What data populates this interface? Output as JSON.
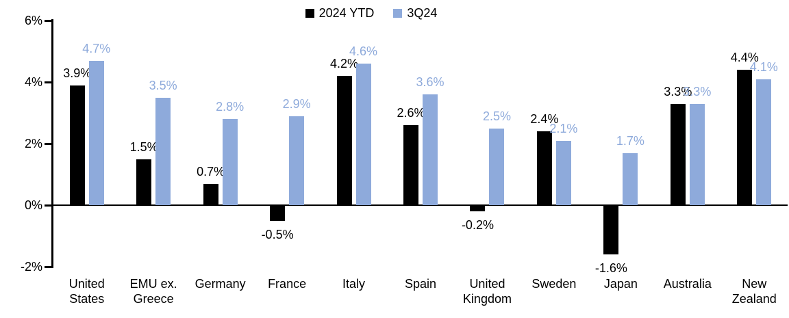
{
  "chart_data": {
    "type": "bar",
    "categories": [
      "United\nStates",
      "EMU ex.\nGreece",
      "Germany",
      "France",
      "Italy",
      "Spain",
      "United\nKingdom",
      "Sweden",
      "Japan",
      "Australia",
      "New\nZealand"
    ],
    "series": [
      {
        "name": "2024 YTD",
        "color": "#000000",
        "values": [
          3.9,
          1.5,
          0.7,
          -0.5,
          4.2,
          2.6,
          -0.2,
          2.4,
          -1.6,
          3.3,
          4.4
        ]
      },
      {
        "name": "3Q24",
        "color": "#8EAADB",
        "values": [
          4.7,
          3.5,
          2.8,
          2.9,
          4.6,
          3.6,
          2.5,
          2.1,
          1.7,
          3.3,
          4.1
        ]
      }
    ],
    "data_labels": [
      [
        "3.9%",
        "1.5%",
        "0.7%",
        "-0.5%",
        "4.2%",
        "2.6%",
        "-0.2%",
        "2.4%",
        "-1.6%",
        "3.3%",
        "4.4%"
      ],
      [
        "4.7%",
        "3.5%",
        "2.8%",
        "2.9%",
        "4.6%",
        "3.6%",
        "2.5%",
        "2.1%",
        "1.7%",
        "3.3%",
        "4.1%"
      ]
    ],
    "value_suffix": "%",
    "ylim": [
      -2,
      6
    ],
    "yticks": [
      6,
      4,
      2,
      0,
      -2
    ],
    "ytick_labels": [
      "6%",
      "4%",
      "2%",
      "0%",
      "-2%"
    ],
    "legend_position": "top-center",
    "grid": false,
    "axis_color": "#000000",
    "background_color": "#ffffff"
  }
}
